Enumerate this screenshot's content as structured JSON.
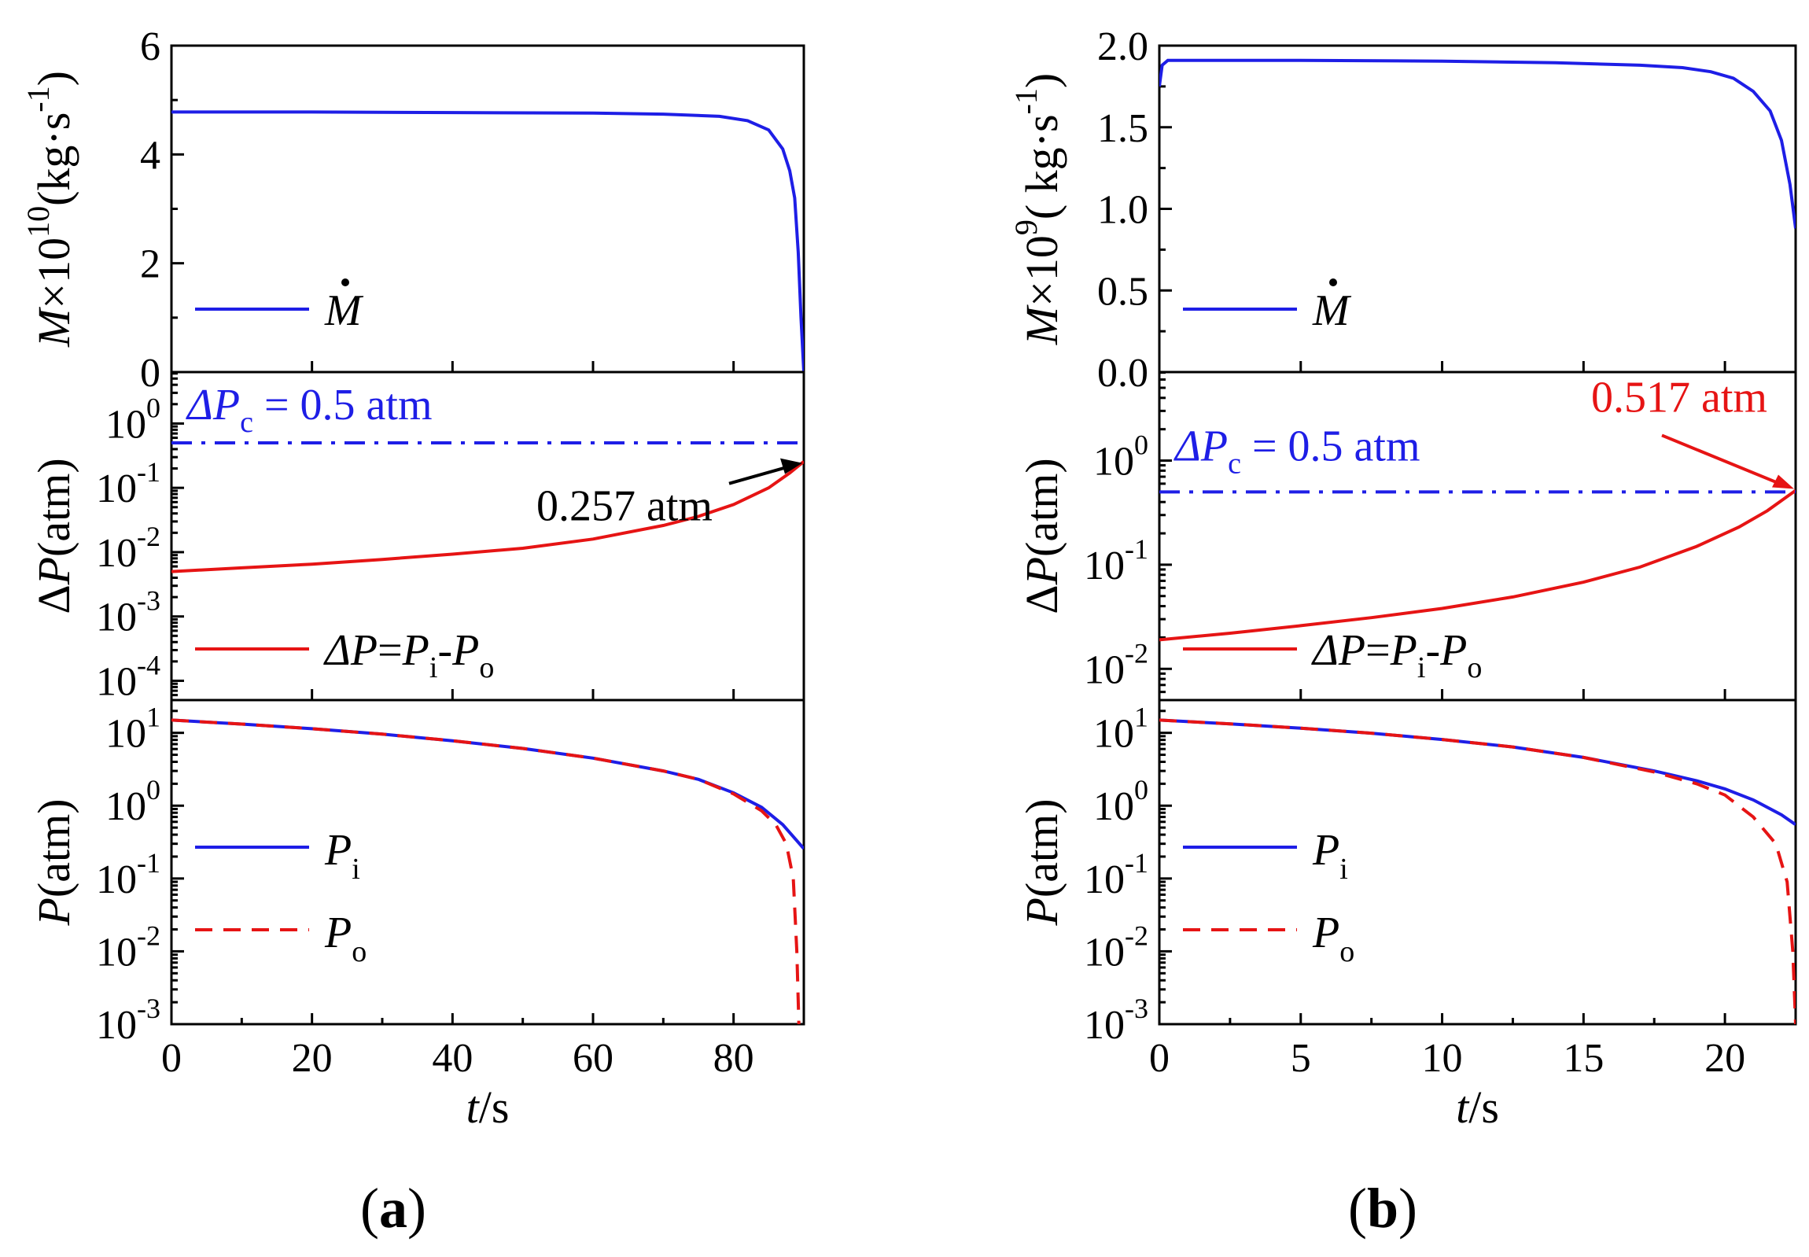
{
  "colors": {
    "blue": "#1e1ee6",
    "red": "#e61414",
    "black": "#000000"
  },
  "chart_data": [
    {
      "panel": "(a)",
      "label": "(a)",
      "type": "line",
      "xlabel": "t/s",
      "xlim": [
        0,
        90
      ],
      "xticks": [
        "0",
        "20",
        "40",
        "60",
        "80"
      ],
      "subplots": [
        {
          "name": "mass-flow-rate",
          "ylabel": "M×10^10(kg·s^-1)",
          "yscale": "linear",
          "ylim": [
            0,
            6
          ],
          "yticks": [
            "0",
            "2",
            "4",
            "6"
          ],
          "series": [
            {
              "name": "M",
              "legend": "M",
              "color": "#1e1ee6",
              "style": "solid",
              "x": [
                0,
                20,
                40,
                60,
                70,
                78,
                82,
                85,
                87,
                88,
                88.7,
                89.2,
                89.6,
                90
              ],
              "y": [
                4.78,
                4.78,
                4.77,
                4.76,
                4.74,
                4.7,
                4.62,
                4.45,
                4.1,
                3.7,
                3.2,
                2.2,
                1.0,
                0
              ]
            }
          ]
        },
        {
          "name": "pressure-difference",
          "ylabel": "ΔP(atm)",
          "yscale": "log",
          "ylim_exp": [
            -4.3,
            0.8
          ],
          "yticks": [
            "10^-4",
            "10^-3",
            "10^-2",
            "10^-1",
            "10^0"
          ],
          "series": [
            {
              "name": "ΔP",
              "legend": "ΔP=Pi-Po",
              "color": "#e61414",
              "style": "solid",
              "x": [
                0,
                10,
                20,
                30,
                40,
                50,
                60,
                70,
                75,
                80,
                85,
                88,
                90
              ],
              "y": [
                0.005,
                0.0057,
                0.0065,
                0.0077,
                0.0093,
                0.0115,
                0.016,
                0.026,
                0.036,
                0.055,
                0.1,
                0.17,
                0.257
              ]
            },
            {
              "name": "ΔPc",
              "legend": "ΔPc = 0.5 atm",
              "color": "#1e1ee6",
              "style": "dashdot",
              "x": [
                0,
                90
              ],
              "y": [
                0.5,
                0.5
              ]
            }
          ],
          "annotations": [
            {
              "text": "0.257 atm",
              "x": 90,
              "y": 0.257,
              "color": "#000000"
            }
          ]
        },
        {
          "name": "pressure",
          "ylabel": "P(atm)",
          "yscale": "log",
          "ylim_exp": [
            -3,
            1.45
          ],
          "yticks": [
            "10^-3",
            "10^-2",
            "10^-1",
            "10^0",
            "10^1"
          ],
          "series": [
            {
              "name": "Pi",
              "legend": "Pi",
              "color": "#1e1ee6",
              "style": "solid",
              "x": [
                0,
                10,
                20,
                30,
                40,
                50,
                60,
                70,
                75,
                80,
                84,
                87,
                90
              ],
              "y": [
                15,
                13.2,
                11.4,
                9.6,
                7.8,
                6.1,
                4.5,
                3.0,
                2.3,
                1.5,
                0.95,
                0.55,
                0.257
              ]
            },
            {
              "name": "Po",
              "legend": "Po",
              "color": "#e61414",
              "style": "dashed",
              "x": [
                0,
                10,
                20,
                30,
                40,
                50,
                60,
                70,
                75,
                80,
                84,
                86,
                87.5,
                88.5,
                89,
                89.3
              ],
              "y": [
                15,
                13.2,
                11.4,
                9.6,
                7.8,
                6.1,
                4.5,
                3.0,
                2.3,
                1.45,
                0.85,
                0.55,
                0.3,
                0.1,
                0.01,
                0.001
              ]
            }
          ]
        }
      ]
    },
    {
      "panel": "(b)",
      "label": "(b)",
      "type": "line",
      "xlabel": "t/s",
      "xlim": [
        0,
        22.5
      ],
      "xticks": [
        "0",
        "5",
        "10",
        "15",
        "20"
      ],
      "subplots": [
        {
          "name": "mass-flow-rate",
          "ylabel": "M×10^9( kg·s^-1)",
          "yscale": "linear",
          "ylim": [
            0,
            2.0
          ],
          "yticks": [
            "0.0",
            "0.5",
            "1.0",
            "1.5",
            "2.0"
          ],
          "series": [
            {
              "name": "M",
              "legend": "M",
              "color": "#1e1ee6",
              "style": "solid",
              "x": [
                0,
                0.1,
                0.3,
                5,
                10,
                14,
                17,
                18.5,
                19.5,
                20.3,
                21,
                21.6,
                22,
                22.3,
                22.5
              ],
              "y": [
                1.75,
                1.88,
                1.91,
                1.91,
                1.905,
                1.895,
                1.88,
                1.865,
                1.84,
                1.8,
                1.72,
                1.6,
                1.42,
                1.15,
                0.88
              ]
            }
          ]
        },
        {
          "name": "pressure-difference",
          "ylabel": "ΔP(atm)",
          "yscale": "log",
          "ylim_exp": [
            -2.3,
            0.85
          ],
          "yticks": [
            "10^-2",
            "10^-1",
            "10^0"
          ],
          "series": [
            {
              "name": "ΔP",
              "legend": "ΔP=Pi-Po",
              "color": "#e61414",
              "style": "solid",
              "x": [
                0,
                2.5,
                5,
                7.5,
                10,
                12.5,
                15,
                17,
                19,
                20.5,
                21.5,
                22.5
              ],
              "y": [
                0.019,
                0.022,
                0.026,
                0.031,
                0.038,
                0.049,
                0.068,
                0.095,
                0.15,
                0.23,
                0.33,
                0.517
              ]
            },
            {
              "name": "ΔPc",
              "legend": "ΔPc = 0.5 atm",
              "color": "#1e1ee6",
              "style": "dashdot",
              "x": [
                0,
                22.5
              ],
              "y": [
                0.5,
                0.5
              ]
            }
          ],
          "annotations": [
            {
              "text": "0.517 atm",
              "x": 22.5,
              "y": 0.517,
              "color": "#e61414"
            }
          ]
        },
        {
          "name": "pressure",
          "ylabel": "P(atm)",
          "yscale": "log",
          "ylim_exp": [
            -3,
            1.45
          ],
          "yticks": [
            "10^-3",
            "10^-2",
            "10^-1",
            "10^0",
            "10^1"
          ],
          "series": [
            {
              "name": "Pi",
              "legend": "Pi",
              "color": "#1e1ee6",
              "style": "solid",
              "x": [
                0,
                2.5,
                5,
                7.5,
                10,
                12.5,
                15,
                17.5,
                19,
                20,
                21,
                22,
                22.5
              ],
              "y": [
                15,
                13.3,
                11.6,
                9.9,
                8.1,
                6.4,
                4.6,
                3.0,
                2.2,
                1.7,
                1.2,
                0.75,
                0.55
              ]
            },
            {
              "name": "Po",
              "legend": "Po",
              "color": "#e61414",
              "style": "dashed",
              "x": [
                0,
                2.5,
                5,
                7.5,
                10,
                12.5,
                15,
                17.5,
                19,
                20,
                21,
                21.8,
                22.2,
                22.4,
                22.5
              ],
              "y": [
                15,
                13.3,
                11.6,
                9.9,
                8.1,
                6.4,
                4.6,
                2.9,
                2.0,
                1.4,
                0.7,
                0.3,
                0.09,
                0.01,
                0.001
              ]
            }
          ]
        }
      ]
    }
  ]
}
